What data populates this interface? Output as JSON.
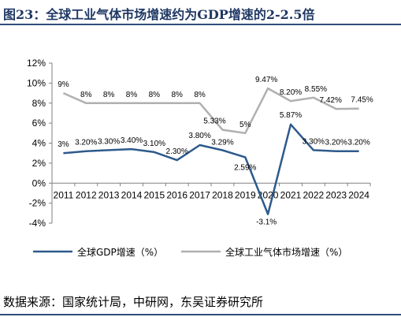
{
  "title": "图23：全球工业气体市场增速约为GDP增速的2-2.5倍",
  "source": "数据来源：国家统计局，中研网，东吴证券研究所",
  "colors": {
    "title": "#1f3864",
    "gdp": "#2e5a8c",
    "gas": "#b0b0b0",
    "axis": "#808080"
  },
  "chart_data": {
    "type": "line",
    "categories": [
      "2011",
      "2012",
      "2013",
      "2014",
      "2015",
      "2016",
      "2017",
      "2018",
      "2019",
      "2020",
      "2021",
      "2022",
      "2023",
      "2024"
    ],
    "y_ticks": [
      "12%",
      "10%",
      "8%",
      "6%",
      "4%",
      "2%",
      "0%",
      "-2%",
      "-4%"
    ],
    "ylim": [
      -4,
      12
    ],
    "grid": false,
    "legend_position": "bottom",
    "series": [
      {
        "name": "全球GDP增速（%）",
        "values": [
          3.0,
          3.2,
          3.3,
          3.4,
          3.1,
          2.3,
          3.8,
          3.29,
          2.59,
          -3.1,
          5.87,
          3.3,
          3.2,
          3.2
        ],
        "labels": [
          "3%",
          "3.20%",
          "3.30%",
          "3.40%",
          "3.10%",
          "2.30%",
          "3.80%",
          "3.29%",
          "2.59%",
          "-3.1%",
          "5.87%",
          "3.30%",
          "3.20%",
          "3.20%"
        ]
      },
      {
        "name": "全球工业气体市场增速（%）",
        "values": [
          9,
          8,
          8,
          8,
          8,
          8,
          8,
          5.33,
          5,
          9.47,
          8.2,
          8.55,
          7.42,
          7.45
        ],
        "labels": [
          "9%",
          "8%",
          "8%",
          "8%",
          "8%",
          "8%",
          "8%",
          "5.33%",
          "5%",
          "9.47%",
          "8.20%",
          "8.55%",
          "7.42%",
          "7.45%"
        ]
      }
    ]
  }
}
